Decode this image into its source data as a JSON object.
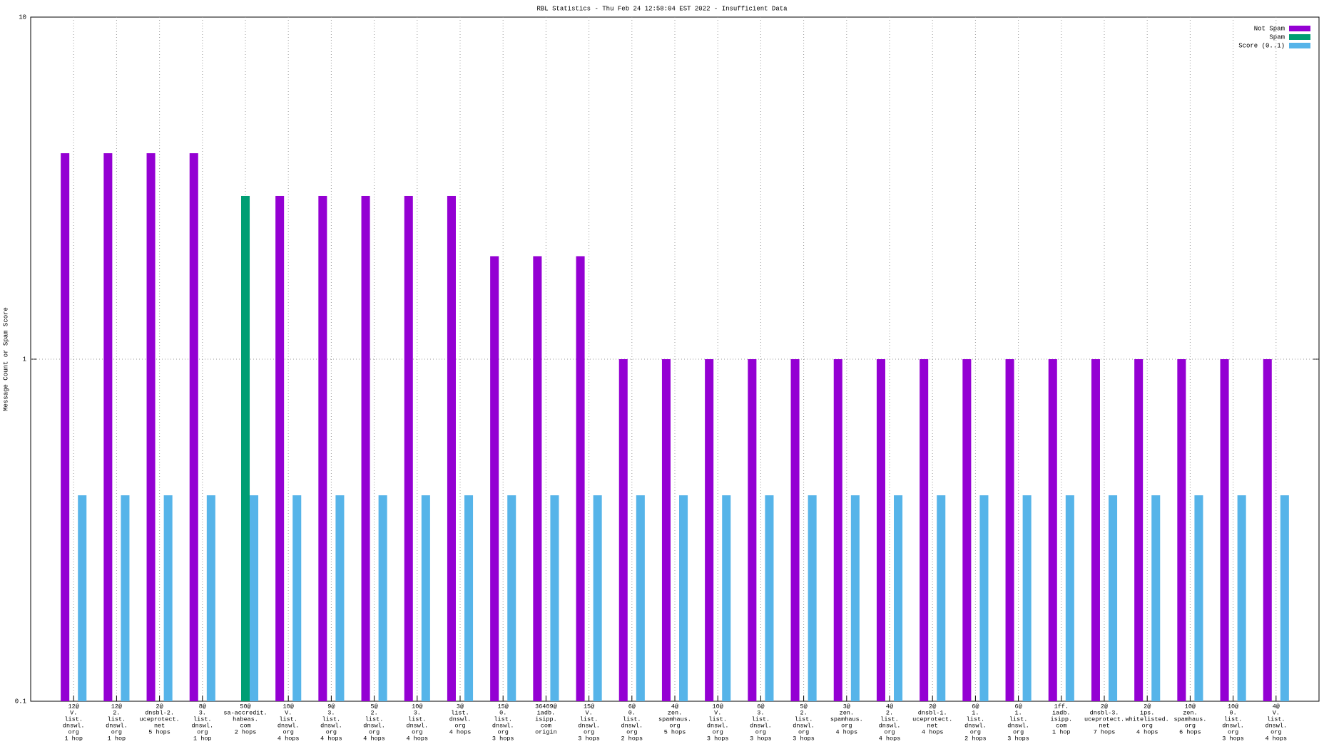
{
  "chart_data": {
    "type": "bar",
    "title": "RBL Statistics - Thu Feb 24 12:58:04 EST 2022 - Insufficient Data",
    "y_label": "Message Count or Spam Score",
    "categories": [
      [
        "12@",
        "V.",
        "list.",
        "dnswl.",
        "org",
        "1 hop"
      ],
      [
        "12@",
        "2.",
        "list.",
        "dnswl.",
        "org",
        "1 hop"
      ],
      [
        "2@",
        "dnsbl-2.",
        "uceprotect.",
        "net",
        "5 hops"
      ],
      [
        "8@",
        "3.",
        "list.",
        "dnswl.",
        "org",
        "1 hop"
      ],
      [
        "50@",
        "sa-accredit.",
        "habeas.",
        "com",
        "2 hops"
      ],
      [
        "10@",
        "V.",
        "list.",
        "dnswl.",
        "org",
        "4 hops"
      ],
      [
        "9@",
        "3.",
        "list.",
        "dnswl.",
        "org",
        "4 hops"
      ],
      [
        "5@",
        "2.",
        "list.",
        "dnswl.",
        "org",
        "4 hops"
      ],
      [
        "10@",
        "3.",
        "list.",
        "dnswl.",
        "org",
        "4 hops"
      ],
      [
        "3@",
        "list.",
        "dnswl.",
        "org",
        "4 hops"
      ],
      [
        "15@",
        "0.",
        "list.",
        "dnswl.",
        "org",
        "3 hops"
      ],
      [
        "36409@",
        "iadb.",
        "isipp.",
        "com",
        "origin"
      ],
      [
        "15@",
        "V.",
        "list.",
        "dnswl.",
        "org",
        "3 hops"
      ],
      [
        "6@",
        "0.",
        "list.",
        "dnswl.",
        "org",
        "2 hops"
      ],
      [
        "4@",
        "zen.",
        "spamhaus.",
        "org",
        "5 hops"
      ],
      [
        "10@",
        "V.",
        "list.",
        "dnswl.",
        "org",
        "3 hops"
      ],
      [
        "6@",
        "3.",
        "list.",
        "dnswl.",
        "org",
        "3 hops"
      ],
      [
        "5@",
        "2.",
        "list.",
        "dnswl.",
        "org",
        "3 hops"
      ],
      [
        "3@",
        "zen.",
        "spamhaus.",
        "org",
        "4 hops"
      ],
      [
        "4@",
        "2.",
        "list.",
        "dnswl.",
        "org",
        "4 hops"
      ],
      [
        "2@",
        "dnsbl-1.",
        "uceprotect.",
        "net",
        "4 hops"
      ],
      [
        "6@",
        "1.",
        "list.",
        "dnswl.",
        "org",
        "2 hops"
      ],
      [
        "6@",
        "1.",
        "list.",
        "dnswl.",
        "org",
        "3 hops"
      ],
      [
        "1ff.",
        "iadb.",
        "isipp.",
        "com",
        "1 hop"
      ],
      [
        "2@",
        "dnsbl-3.",
        "uceprotect.",
        "net",
        "7 hops"
      ],
      [
        "2@",
        "ips.",
        "whitelisted.",
        "org",
        "4 hops"
      ],
      [
        "10@",
        "zen.",
        "spamhaus.",
        "org",
        "6 hops"
      ],
      [
        "10@",
        "0.",
        "list.",
        "dnswl.",
        "org",
        "3 hops"
      ],
      [
        "4@",
        "V.",
        "list.",
        "dnswl.",
        "org",
        "4 hops"
      ]
    ],
    "series": [
      {
        "name": "Not Spam",
        "color": "#9400d3",
        "values": [
          4,
          4,
          4,
          4,
          null,
          3,
          3,
          3,
          3,
          3,
          2,
          2,
          2,
          1,
          1,
          1,
          1,
          1,
          1,
          1,
          1,
          1,
          1,
          1,
          1,
          1,
          1,
          1,
          1
        ]
      },
      {
        "name": "Spam",
        "color": "#009e73",
        "values": [
          null,
          null,
          null,
          null,
          3,
          null,
          null,
          null,
          null,
          null,
          null,
          null,
          null,
          null,
          null,
          null,
          null,
          null,
          null,
          null,
          null,
          null,
          null,
          null,
          null,
          null,
          null,
          null,
          null
        ]
      },
      {
        "name": "Score (0..1)",
        "color": "#56b4e9",
        "values": [
          0.4,
          0.4,
          0.4,
          0.4,
          0.4,
          0.4,
          0.4,
          0.4,
          0.4,
          0.4,
          0.4,
          0.4,
          0.4,
          0.4,
          0.4,
          0.4,
          0.4,
          0.4,
          0.4,
          0.4,
          0.4,
          0.4,
          0.4,
          0.4,
          0.4,
          0.4,
          0.4,
          0.4,
          0.4
        ]
      }
    ],
    "ylim": [
      0.1,
      10
    ],
    "yticks": [
      0.1,
      1,
      10
    ],
    "log_y": true,
    "grid": true,
    "legend": "upper right"
  }
}
